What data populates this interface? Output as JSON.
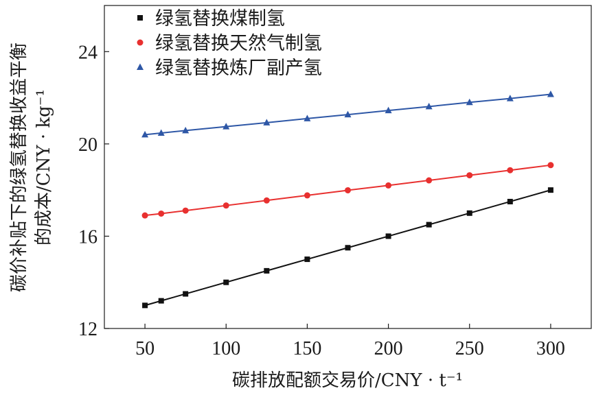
{
  "chart_data": {
    "type": "line",
    "title": "",
    "xlabel": "碳排放配额交易价/CNY · t⁻¹",
    "ylabel_line1": "碳价补贴下的绿氢替换收益平衡",
    "ylabel_line2": "的成本/CNY · kg⁻¹",
    "xlim": [
      25,
      325
    ],
    "ylim": [
      12,
      26
    ],
    "xticks": [
      50,
      100,
      150,
      200,
      250,
      300
    ],
    "yticks": [
      12,
      16,
      20,
      24
    ],
    "grid": false,
    "legend_position": "top-left",
    "series": [
      {
        "name": "绿氢替换煤制氢",
        "color": "#111111",
        "marker": "square",
        "x": [
          50,
          60,
          75,
          100,
          125,
          150,
          175,
          200,
          225,
          250,
          275,
          300
        ],
        "values": [
          13.0,
          13.2,
          13.5,
          14.0,
          14.5,
          15.0,
          15.5,
          16.0,
          16.5,
          17.0,
          17.5,
          18.0
        ]
      },
      {
        "name": "绿氢替换天然气制氢",
        "color": "#e8302f",
        "marker": "circle",
        "x": [
          50,
          60,
          75,
          100,
          125,
          150,
          175,
          200,
          225,
          250,
          275,
          300
        ],
        "values": [
          16.9,
          16.98,
          17.11,
          17.33,
          17.55,
          17.77,
          17.99,
          18.2,
          18.42,
          18.64,
          18.86,
          19.08
        ]
      },
      {
        "name": "绿氢替换炼厂副产氢",
        "color": "#2e57a6",
        "marker": "triangle",
        "x": [
          50,
          60,
          75,
          100,
          125,
          150,
          175,
          200,
          225,
          250,
          275,
          300
        ],
        "values": [
          20.4,
          20.47,
          20.58,
          20.75,
          20.92,
          21.1,
          21.27,
          21.45,
          21.62,
          21.8,
          21.97,
          22.15
        ]
      }
    ]
  }
}
